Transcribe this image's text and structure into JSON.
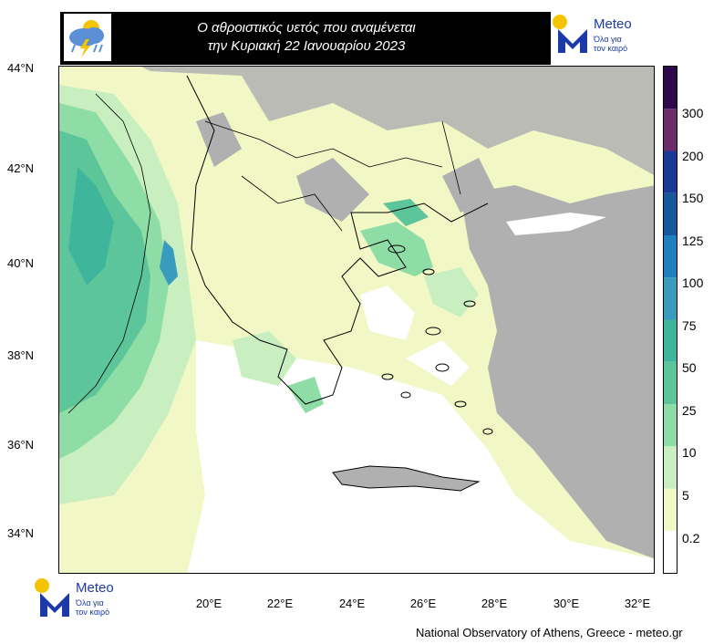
{
  "header": {
    "title_line1": "Ο αθροιστικός υετός που αναμένεται",
    "title_line2": "την Κυριακή 22 Ιανουαρίου 2023"
  },
  "brand": {
    "name": "Meteo",
    "tagline_line1": "Όλα για",
    "tagline_line2": "τον καιρό",
    "colors": {
      "blue": "#1c3aa9",
      "yellow": "#f5c400"
    }
  },
  "map": {
    "latitude_labels": [
      "44°N",
      "42°N",
      "40°N",
      "38°N",
      "36°N",
      "34°N"
    ],
    "longitude_labels": [
      "20°E",
      "22°E",
      "24°E",
      "26°E",
      "28°E",
      "30°E",
      "32°E"
    ],
    "colors": {
      "land_no_data": "#b0b0b0",
      "sea": "#ffffff"
    }
  },
  "legend": {
    "labels": [
      "300",
      "200",
      "150",
      "125",
      "100",
      "75",
      "50",
      "25",
      "10",
      "5",
      "0.2"
    ],
    "colors": [
      "#ffffff",
      "#f1f7c5",
      "#c9efc1",
      "#8fdda6",
      "#5cc59a",
      "#3fb59c",
      "#399cbf",
      "#1f7fbf",
      "#17579c",
      "#1a3a96",
      "#6b2c68",
      "#2e0a4d"
    ]
  },
  "footer": {
    "credit": "National Observatory of Athens, Greece - meteo.gr"
  }
}
